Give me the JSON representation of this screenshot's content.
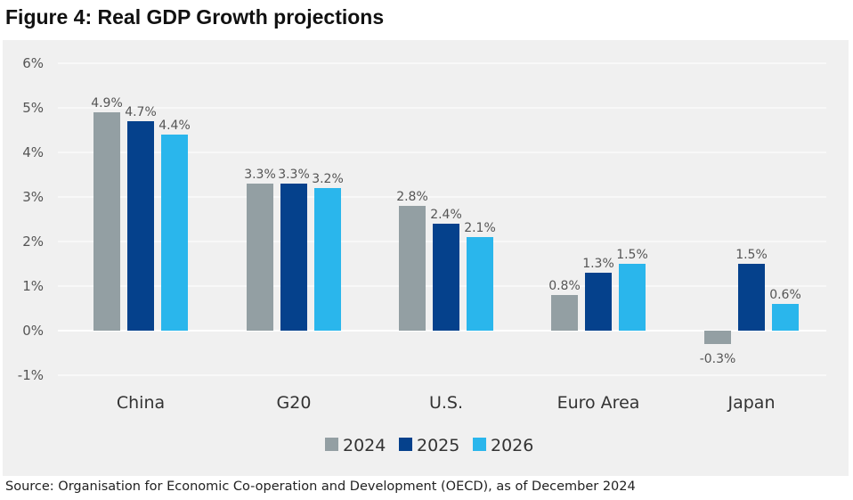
{
  "figure_title": "Figure 4: Real GDP Growth projections",
  "source_note": "Source: Organisation for Economic Co-operation and Development (OECD), as of December 2024",
  "chart_data": {
    "type": "bar",
    "title": "",
    "xlabel": "",
    "ylabel": "",
    "categories": [
      "China",
      "G20",
      "U.S.",
      "Euro Area",
      "Japan"
    ],
    "series": [
      {
        "name": "2024",
        "color": "#939fa3",
        "values": [
          4.9,
          3.3,
          2.8,
          0.8,
          -0.3
        ],
        "labels": [
          "4.9%",
          "3.3%",
          "2.8%",
          "0.8%",
          "-0.3%"
        ]
      },
      {
        "name": "2025",
        "color": "#05418c",
        "values": [
          4.7,
          3.3,
          2.4,
          1.3,
          1.5
        ],
        "labels": [
          "4.7%",
          "3.3%",
          "2.4%",
          "1.3%",
          "1.5%"
        ]
      },
      {
        "name": "2026",
        "color": "#2ab6ec",
        "values": [
          4.4,
          3.2,
          2.1,
          1.5,
          0.6
        ],
        "labels": [
          "4.4%",
          "3.2%",
          "2.1%",
          "1.5%",
          "0.6%"
        ]
      }
    ],
    "ylim": [
      -1,
      6
    ],
    "yticks": [
      6,
      5,
      4,
      3,
      2,
      1,
      0,
      -1
    ],
    "ytick_labels": [
      "6%",
      "5%",
      "4%",
      "3%",
      "2%",
      "1%",
      "0%",
      "-1%"
    ],
    "grid": true,
    "legend_position": "bottom-center",
    "colors": {
      "panel_background": "#f0f0f0",
      "gridline": "#ffffff",
      "zero_line": "#ffffff"
    }
  }
}
